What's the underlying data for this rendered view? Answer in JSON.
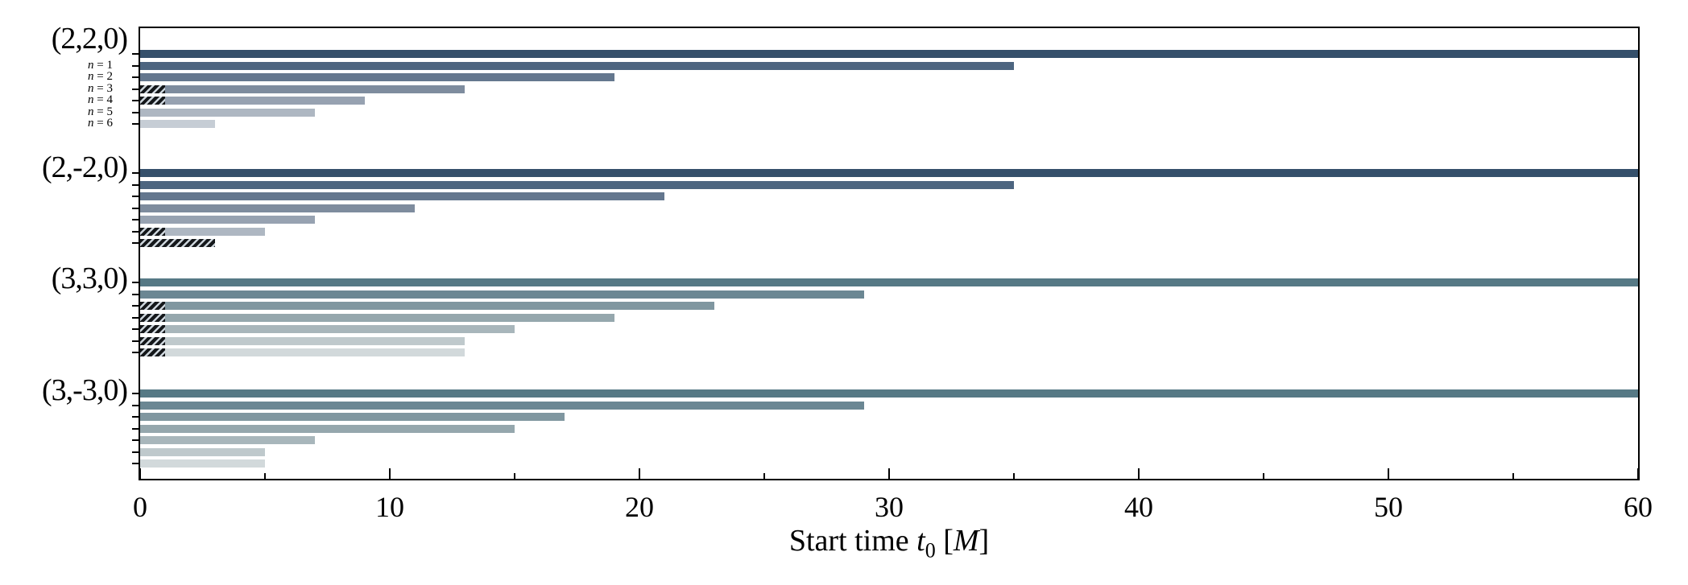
{
  "chart_data": {
    "type": "bar",
    "orientation": "horizontal",
    "title": "",
    "xlabel": "Start time t0 [M]",
    "xlabel_parts": {
      "prefix": "Start time ",
      "var": "t",
      "sub": "0",
      "open_bracket": " [",
      "unit": "M",
      "close_bracket": "]"
    },
    "xlim": [
      0,
      60
    ],
    "xticks_major": [
      0,
      10,
      20,
      30,
      40,
      50,
      60
    ],
    "xticks_minor": [
      5,
      15,
      25,
      35,
      45,
      55
    ],
    "grid": false,
    "legend": false,
    "n_var": "n",
    "eq_sign": "=",
    "row_sublabels": [
      "1",
      "2",
      "3",
      "4",
      "5",
      "6"
    ],
    "palettes": {
      "blue": [
        "#35506b",
        "#4d6580",
        "#64778e",
        "#7e8c9e",
        "#97a2b1",
        "#aeb7c2",
        "#c6cdd5"
      ],
      "teal": [
        "#567985",
        "#6b8793",
        "#8097a0",
        "#95a7ad",
        "#a8b6bb",
        "#bfc9cc",
        "#d2d9db"
      ]
    },
    "hatch_colors": {
      "dark": "#15181b",
      "light": "#cdd5dc"
    },
    "groups": [
      {
        "label": "(2,2,0)",
        "palette": "blue",
        "bars": [
          {
            "n": 0,
            "value": 60,
            "hatch_to": 0
          },
          {
            "n": 1,
            "value": 35,
            "hatch_to": 0
          },
          {
            "n": 2,
            "value": 19,
            "hatch_to": 0
          },
          {
            "n": 3,
            "value": 13,
            "hatch_to": 1
          },
          {
            "n": 4,
            "value": 9,
            "hatch_to": 1
          },
          {
            "n": 5,
            "value": 7,
            "hatch_to": 0
          },
          {
            "n": 6,
            "value": 3,
            "hatch_to": 0
          }
        ]
      },
      {
        "label": "(2,-2,0)",
        "palette": "blue",
        "bars": [
          {
            "n": 0,
            "value": 60,
            "hatch_to": 0
          },
          {
            "n": 1,
            "value": 35,
            "hatch_to": 0
          },
          {
            "n": 2,
            "value": 21,
            "hatch_to": 0
          },
          {
            "n": 3,
            "value": 11,
            "hatch_to": 0
          },
          {
            "n": 4,
            "value": 7,
            "hatch_to": 0
          },
          {
            "n": 5,
            "value": 5,
            "hatch_to": 1
          },
          {
            "n": 6,
            "value": 3,
            "hatch_to": 3
          }
        ]
      },
      {
        "label": "(3,3,0)",
        "palette": "teal",
        "bars": [
          {
            "n": 0,
            "value": 60,
            "hatch_to": 0
          },
          {
            "n": 1,
            "value": 29,
            "hatch_to": 0
          },
          {
            "n": 2,
            "value": 23,
            "hatch_to": 1
          },
          {
            "n": 3,
            "value": 19,
            "hatch_to": 1
          },
          {
            "n": 4,
            "value": 15,
            "hatch_to": 1
          },
          {
            "n": 5,
            "value": 13,
            "hatch_to": 1
          },
          {
            "n": 6,
            "value": 13,
            "hatch_to": 1
          }
        ]
      },
      {
        "label": "(3,-3,0)",
        "palette": "teal",
        "bars": [
          {
            "n": 0,
            "value": 60,
            "hatch_to": 0
          },
          {
            "n": 1,
            "value": 29,
            "hatch_to": 0
          },
          {
            "n": 2,
            "value": 17,
            "hatch_to": 0
          },
          {
            "n": 3,
            "value": 15,
            "hatch_to": 0
          },
          {
            "n": 4,
            "value": 7,
            "hatch_to": 0
          },
          {
            "n": 5,
            "value": 5,
            "hatch_to": 0
          },
          {
            "n": 6,
            "value": 5,
            "hatch_to": 0
          }
        ]
      }
    ]
  }
}
